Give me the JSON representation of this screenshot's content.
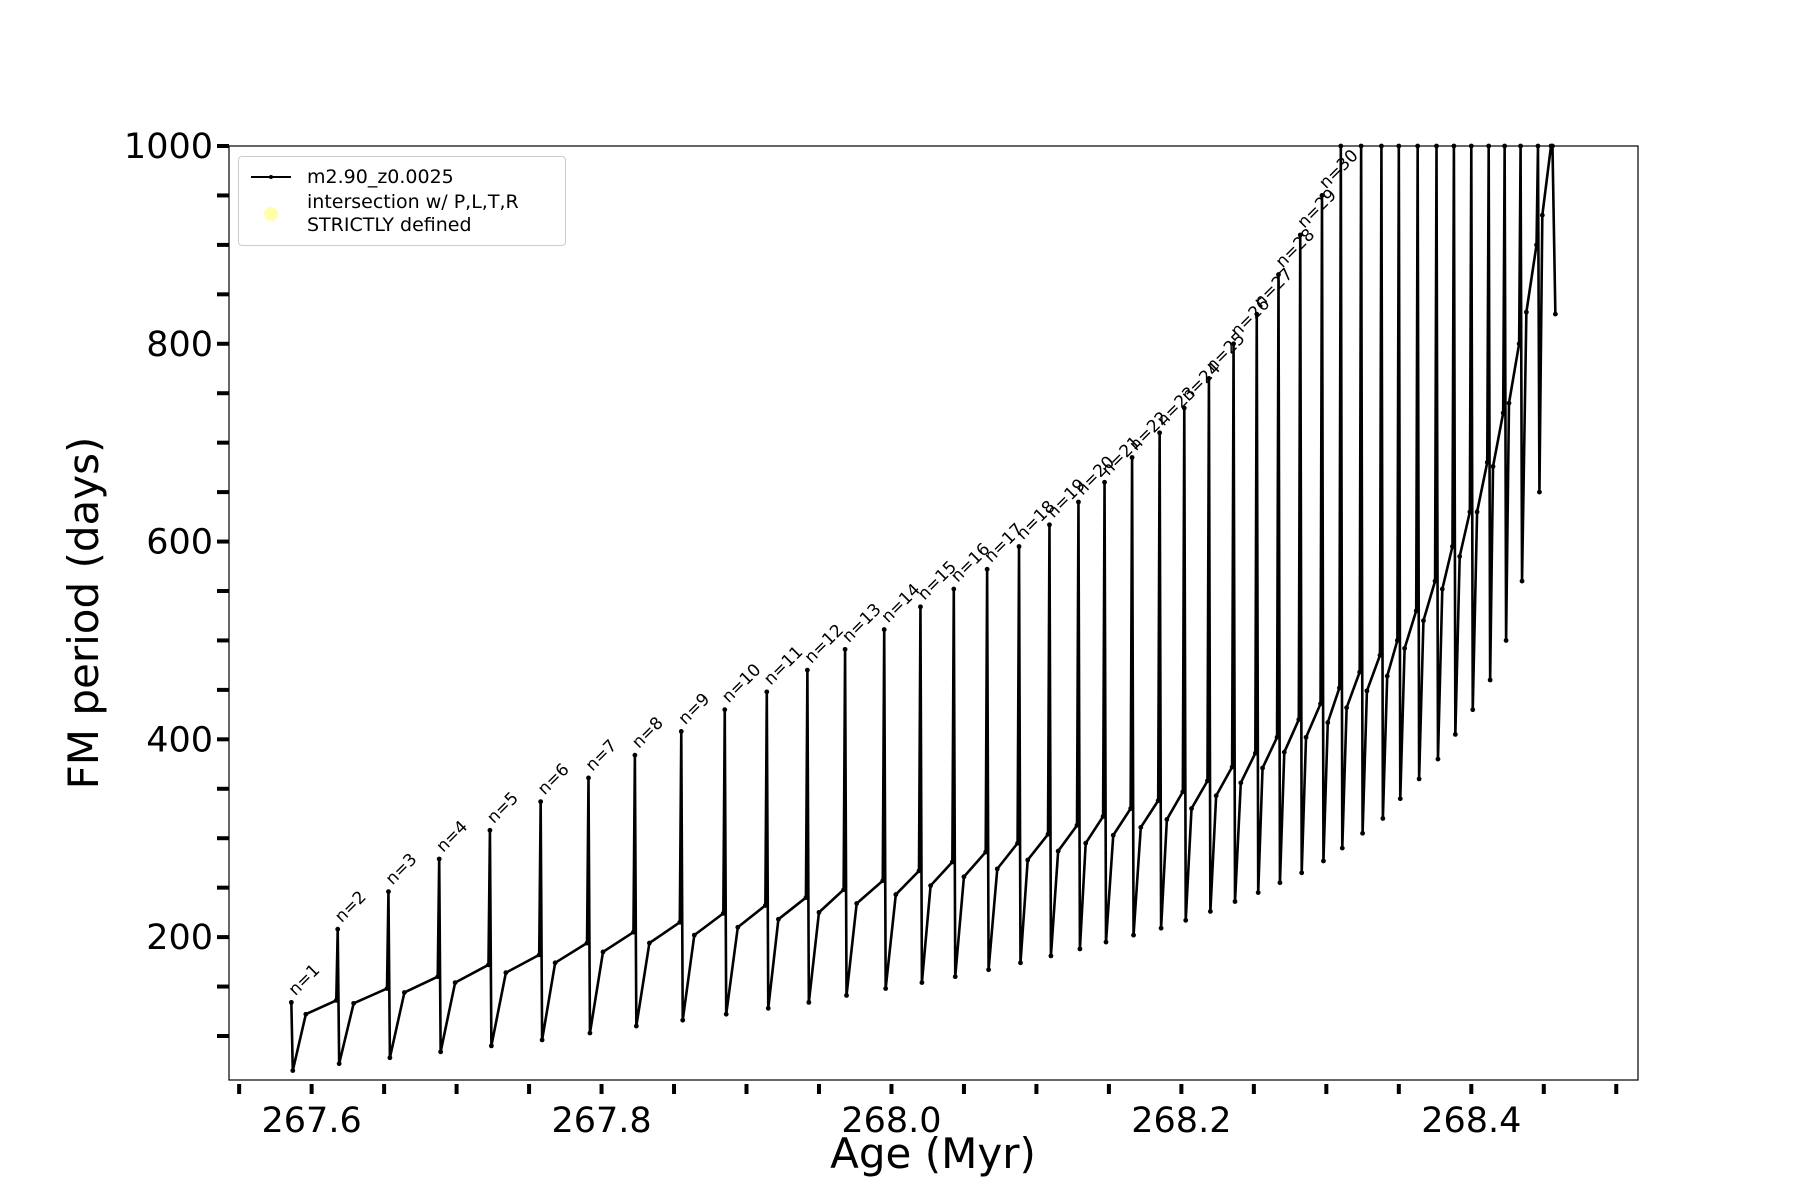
{
  "chart_data": {
    "type": "line",
    "xlabel": "Age (Myr)",
    "ylabel": "FM period (days)",
    "xlim": [
      267.543,
      268.515
    ],
    "ylim": [
      55.5,
      1000
    ],
    "xticks": [
      267.6,
      267.8,
      {
        "value": 268,
        "label": "268.0"
      },
      268.2,
      268.4
    ],
    "xminor_ticks": [
      267.55,
      267.65,
      267.7,
      267.75,
      267.85,
      267.9,
      267.95,
      268.05,
      268.1,
      268.15,
      268.25,
      268.3,
      268.35,
      268.45,
      268.5
    ],
    "yticks": [
      200,
      400,
      600,
      800,
      1000
    ],
    "yminor_ticks": [
      100,
      150,
      250,
      300,
      350,
      450,
      500,
      550,
      650,
      700,
      750,
      850,
      900,
      950
    ],
    "grid": false,
    "legend": "upper left",
    "series": [
      {
        "name": "m2.90_z0.0025",
        "color": "#000000",
        "x": [
          267.586,
          267.587,
          267.596,
          267.617,
          267.618,
          267.619,
          267.629,
          267.652,
          267.653,
          267.654,
          267.664,
          267.687,
          267.688,
          267.689,
          267.699,
          267.722,
          267.723,
          267.724,
          267.734,
          267.757,
          267.758,
          267.759,
          267.768,
          267.79,
          267.791,
          267.792,
          267.801,
          267.822,
          267.823,
          267.824,
          267.833,
          267.854,
          267.855,
          267.856,
          267.864,
          267.884,
          267.885,
          267.886,
          267.894,
          267.913,
          267.914,
          267.915,
          267.922,
          267.941,
          267.942,
          267.943,
          267.95,
          267.967,
          267.968,
          267.969,
          267.976,
          267.994,
          267.995,
          267.996,
          268.003,
          268.019,
          268.02,
          268.021,
          268.027,
          268.042,
          268.043,
          268.044,
          268.05,
          268.065,
          268.066,
          268.067,
          268.073,
          268.087,
          268.088,
          268.089,
          268.094,
          268.108,
          268.109,
          268.11,
          268.115,
          268.128,
          268.129,
          268.13,
          268.134,
          268.146,
          268.147,
          268.148,
          268.153,
          268.165,
          268.166,
          268.167,
          268.172,
          268.184,
          268.185,
          268.186,
          268.19,
          268.201,
          268.202,
          268.203,
          268.207,
          268.218,
          268.219,
          268.22,
          268.224,
          268.235,
          268.236,
          268.237,
          268.241,
          268.251,
          268.252,
          268.253,
          268.256,
          268.266,
          268.267,
          268.268,
          268.271,
          268.281,
          268.282,
          268.283,
          268.286,
          268.296,
          268.297,
          268.298,
          268.301,
          268.309,
          268.31,
          268.311,
          268.314,
          268.323,
          268.324,
          268.325,
          268.328,
          268.337,
          268.338,
          268.339,
          268.342,
          268.349,
          268.35,
          268.351,
          268.354,
          268.362,
          268.363,
          268.364,
          268.367,
          268.375,
          268.376,
          268.377,
          268.38,
          268.387,
          268.388,
          268.389,
          268.392,
          268.399,
          268.4,
          268.401,
          268.404,
          268.411,
          268.412,
          268.413,
          268.415,
          268.422,
          268.423,
          268.424,
          268.426,
          268.433,
          268.434,
          268.435,
          268.438,
          268.445,
          268.446,
          268.447,
          268.449,
          268.455,
          268.456,
          268.458
        ],
        "values": [
          134,
          65,
          122,
          136,
          208,
          72,
          133,
          148,
          246,
          78,
          144,
          160,
          279,
          84,
          154,
          172,
          308,
          90,
          164,
          182,
          337,
          96,
          174,
          194,
          361,
          103,
          185,
          205,
          384,
          110,
          194,
          215,
          408,
          116,
          202,
          224,
          430,
          122,
          210,
          232,
          448,
          128,
          218,
          240,
          470,
          134,
          225,
          248,
          491,
          141,
          234,
          257,
          511,
          148,
          243,
          267,
          534,
          154,
          252,
          276,
          552,
          160,
          261,
          286,
          572,
          167,
          269,
          295,
          595,
          174,
          278,
          304,
          617,
          181,
          287,
          313,
          640,
          188,
          295,
          322,
          660,
          195,
          303,
          330,
          685,
          202,
          311,
          338,
          710,
          209,
          319,
          347,
          735,
          217,
          330,
          358,
          765,
          226,
          343,
          372,
          800,
          236,
          356,
          386,
          830,
          245,
          371,
          402,
          870,
          255,
          387,
          420,
          910,
          265,
          402,
          436,
          950,
          277,
          417,
          452,
          1000,
          290,
          432,
          468,
          1000,
          305,
          449,
          485,
          1000,
          320,
          464,
          500,
          1000,
          340,
          492,
          530,
          1000,
          360,
          520,
          560,
          1000,
          380,
          552,
          595,
          1000,
          405,
          585,
          630,
          1000,
          430,
          630,
          680,
          1000,
          460,
          676,
          730,
          1000,
          500,
          740,
          800,
          1000,
          560,
          832,
          900,
          1000,
          650,
          930,
          1000,
          1000,
          830
        ]
      },
      {
        "name": "intersection w/ P,L,T,R\nSTRICTLY defined",
        "color": "#ffffaa",
        "x": [],
        "values": []
      }
    ],
    "annotations": [
      "n=1",
      "n=2",
      "n=3",
      "n=4",
      "n=5",
      "n=6",
      "n=7",
      "n=8",
      "n=9",
      "n=10",
      "n=11",
      "n=12",
      "n=13",
      "n=14",
      "n=15",
      "n=16",
      "n=17",
      "n=18",
      "n=19",
      "n=20",
      "n=21",
      "n=22",
      "n=23",
      "n=24",
      "n=25",
      "n=26",
      "n=27",
      "n=28",
      "n=29",
      "n=30"
    ]
  }
}
